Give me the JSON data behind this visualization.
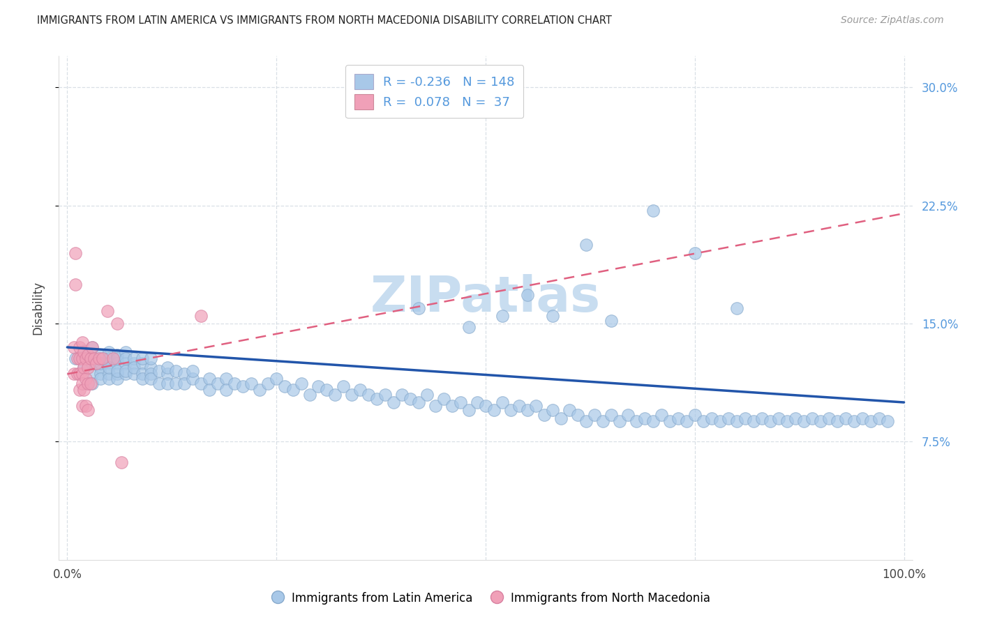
{
  "title": "IMMIGRANTS FROM LATIN AMERICA VS IMMIGRANTS FROM NORTH MACEDONIA DISABILITY CORRELATION CHART",
  "source": "Source: ZipAtlas.com",
  "ylabel": "Disability",
  "xlim": [
    -0.01,
    1.01
  ],
  "ylim": [
    0.0,
    0.32
  ],
  "yticks": [
    0.075,
    0.15,
    0.225,
    0.3
  ],
  "ytick_labels": [
    "7.5%",
    "15.0%",
    "22.5%",
    "30.0%"
  ],
  "xticks": [
    0.0,
    0.25,
    0.5,
    0.75,
    1.0
  ],
  "xtick_labels": [
    "0.0%",
    "",
    "",
    "",
    "100.0%"
  ],
  "blue_label": "Immigrants from Latin America",
  "pink_label": "Immigrants from North Macedonia",
  "blue_R": -0.236,
  "blue_N": 148,
  "pink_R": 0.078,
  "pink_N": 37,
  "blue_color": "#a8c8e8",
  "pink_color": "#f0a0b8",
  "blue_edge_color": "#88aacc",
  "pink_edge_color": "#d880a0",
  "blue_line_color": "#2255aa",
  "pink_line_color": "#e06080",
  "background_color": "#ffffff",
  "grid_color": "#d0d8e0",
  "title_color": "#222222",
  "ytick_color": "#5599dd",
  "watermark_color": "#c8ddf0",
  "blue_scatter_x": [
    0.01,
    0.02,
    0.02,
    0.03,
    0.03,
    0.03,
    0.03,
    0.03,
    0.04,
    0.04,
    0.04,
    0.04,
    0.04,
    0.05,
    0.05,
    0.05,
    0.05,
    0.05,
    0.05,
    0.06,
    0.06,
    0.06,
    0.06,
    0.06,
    0.06,
    0.07,
    0.07,
    0.07,
    0.07,
    0.07,
    0.08,
    0.08,
    0.08,
    0.08,
    0.09,
    0.09,
    0.09,
    0.09,
    0.1,
    0.1,
    0.1,
    0.1,
    0.11,
    0.11,
    0.12,
    0.12,
    0.12,
    0.13,
    0.13,
    0.14,
    0.14,
    0.15,
    0.15,
    0.16,
    0.17,
    0.17,
    0.18,
    0.19,
    0.19,
    0.2,
    0.21,
    0.22,
    0.23,
    0.24,
    0.25,
    0.26,
    0.27,
    0.28,
    0.29,
    0.3,
    0.31,
    0.32,
    0.33,
    0.34,
    0.35,
    0.36,
    0.37,
    0.38,
    0.39,
    0.4,
    0.41,
    0.42,
    0.43,
    0.44,
    0.45,
    0.46,
    0.47,
    0.48,
    0.49,
    0.5,
    0.51,
    0.52,
    0.53,
    0.54,
    0.55,
    0.56,
    0.57,
    0.58,
    0.59,
    0.6,
    0.61,
    0.62,
    0.63,
    0.64,
    0.65,
    0.66,
    0.67,
    0.68,
    0.69,
    0.7,
    0.71,
    0.72,
    0.73,
    0.74,
    0.75,
    0.76,
    0.77,
    0.78,
    0.79,
    0.8,
    0.81,
    0.82,
    0.83,
    0.84,
    0.85,
    0.86,
    0.87,
    0.88,
    0.89,
    0.9,
    0.91,
    0.92,
    0.93,
    0.94,
    0.95,
    0.96,
    0.97,
    0.98,
    0.55,
    0.62,
    0.7,
    0.75,
    0.8,
    0.65,
    0.58,
    0.48,
    0.42,
    0.52
  ],
  "blue_scatter_y": [
    0.128,
    0.133,
    0.122,
    0.135,
    0.128,
    0.118,
    0.125,
    0.112,
    0.13,
    0.122,
    0.118,
    0.125,
    0.115,
    0.132,
    0.125,
    0.118,
    0.128,
    0.115,
    0.122,
    0.13,
    0.125,
    0.118,
    0.128,
    0.115,
    0.12,
    0.132,
    0.125,
    0.118,
    0.128,
    0.12,
    0.125,
    0.118,
    0.128,
    0.122,
    0.125,
    0.118,
    0.128,
    0.115,
    0.122,
    0.118,
    0.128,
    0.115,
    0.12,
    0.112,
    0.118,
    0.112,
    0.122,
    0.12,
    0.112,
    0.118,
    0.112,
    0.115,
    0.12,
    0.112,
    0.115,
    0.108,
    0.112,
    0.115,
    0.108,
    0.112,
    0.11,
    0.112,
    0.108,
    0.112,
    0.115,
    0.11,
    0.108,
    0.112,
    0.105,
    0.11,
    0.108,
    0.105,
    0.11,
    0.105,
    0.108,
    0.105,
    0.102,
    0.105,
    0.1,
    0.105,
    0.102,
    0.1,
    0.105,
    0.098,
    0.102,
    0.098,
    0.1,
    0.095,
    0.1,
    0.098,
    0.095,
    0.1,
    0.095,
    0.098,
    0.095,
    0.098,
    0.092,
    0.095,
    0.09,
    0.095,
    0.092,
    0.088,
    0.092,
    0.088,
    0.092,
    0.088,
    0.092,
    0.088,
    0.09,
    0.088,
    0.092,
    0.088,
    0.09,
    0.088,
    0.092,
    0.088,
    0.09,
    0.088,
    0.09,
    0.088,
    0.09,
    0.088,
    0.09,
    0.088,
    0.09,
    0.088,
    0.09,
    0.088,
    0.09,
    0.088,
    0.09,
    0.088,
    0.09,
    0.088,
    0.09,
    0.088,
    0.09,
    0.088,
    0.168,
    0.2,
    0.222,
    0.195,
    0.16,
    0.152,
    0.155,
    0.148,
    0.16,
    0.155
  ],
  "pink_scatter_x": [
    0.008,
    0.008,
    0.01,
    0.01,
    0.012,
    0.012,
    0.015,
    0.015,
    0.015,
    0.015,
    0.018,
    0.018,
    0.018,
    0.018,
    0.018,
    0.02,
    0.02,
    0.02,
    0.022,
    0.022,
    0.022,
    0.025,
    0.025,
    0.025,
    0.025,
    0.028,
    0.028,
    0.03,
    0.032,
    0.035,
    0.038,
    0.042,
    0.048,
    0.055,
    0.06,
    0.065,
    0.16
  ],
  "pink_scatter_y": [
    0.135,
    0.118,
    0.195,
    0.175,
    0.128,
    0.118,
    0.135,
    0.128,
    0.118,
    0.108,
    0.138,
    0.128,
    0.118,
    0.112,
    0.098,
    0.132,
    0.122,
    0.108,
    0.128,
    0.115,
    0.098,
    0.13,
    0.122,
    0.112,
    0.095,
    0.128,
    0.112,
    0.135,
    0.128,
    0.125,
    0.128,
    0.128,
    0.158,
    0.128,
    0.15,
    0.062,
    0.155
  ],
  "blue_trend_start_x": 0.0,
  "blue_trend_start_y": 0.135,
  "blue_trend_end_x": 1.0,
  "blue_trend_end_y": 0.1,
  "pink_trend_start_x": 0.0,
  "pink_trend_start_y": 0.118,
  "pink_trend_end_x": 1.0,
  "pink_trend_end_y": 0.22
}
